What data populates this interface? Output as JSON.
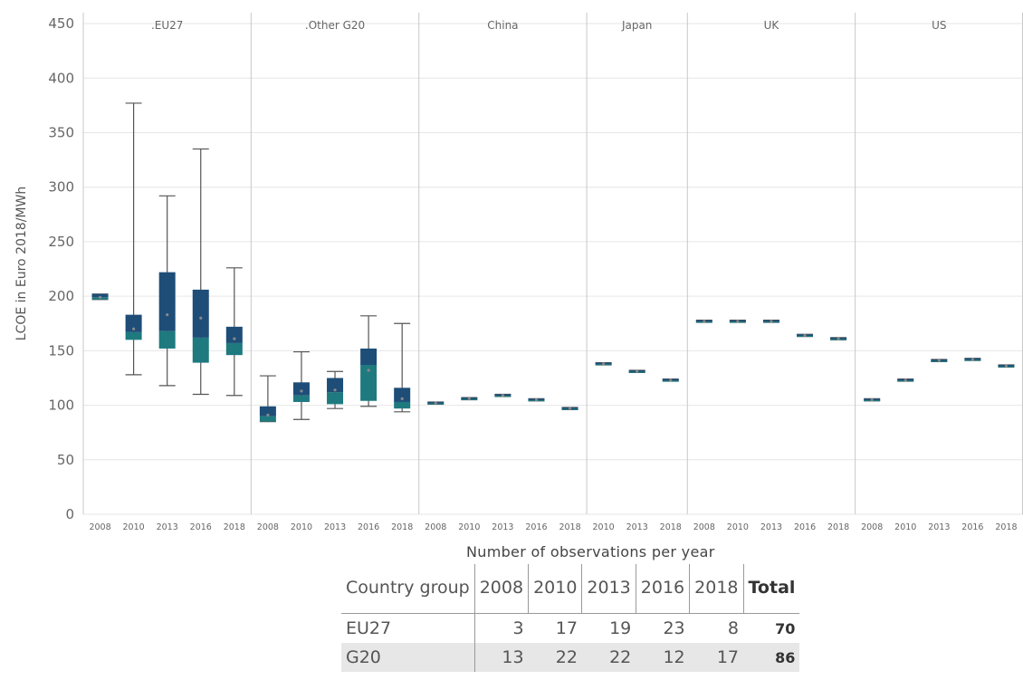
{
  "chart_data": {
    "type": "box",
    "ylabel": "LCOE in Euro 2018/MWh",
    "ylim": [
      0,
      460
    ],
    "yticks": [
      0,
      50,
      100,
      150,
      200,
      250,
      300,
      350,
      400,
      450
    ],
    "grid": true,
    "colors": {
      "box_upper": "#1e4d78",
      "box_lower": "#1e7a7f",
      "whisker": "#555555",
      "gridline": "#e6e6e6",
      "panel_divider": "#c8c8c8"
    },
    "panels": [
      {
        "name": ".EU27",
        "boxes": [
          {
            "x": "2008",
            "min": 197,
            "q1": 197,
            "median": 199,
            "q3": 202,
            "max": 202,
            "mean": 199
          },
          {
            "x": "2010",
            "min": 128,
            "q1": 160,
            "median": 167,
            "q3": 183,
            "max": 377,
            "mean": 170
          },
          {
            "x": "2013",
            "min": 118,
            "q1": 152,
            "median": 168,
            "q3": 222,
            "max": 292,
            "mean": 183
          },
          {
            "x": "2016",
            "min": 110,
            "q1": 139,
            "median": 162,
            "q3": 206,
            "max": 335,
            "mean": 180
          },
          {
            "x": "2018",
            "min": 109,
            "q1": 146,
            "median": 157,
            "q3": 172,
            "max": 226,
            "mean": 161
          }
        ]
      },
      {
        "name": ".Other G20",
        "boxes": [
          {
            "x": "2008",
            "min": 85,
            "q1": 85,
            "median": 90,
            "q3": 99,
            "max": 127,
            "mean": 91
          },
          {
            "x": "2010",
            "min": 87,
            "q1": 103,
            "median": 109,
            "q3": 121,
            "max": 149,
            "mean": 113
          },
          {
            "x": "2013",
            "min": 97,
            "q1": 101,
            "median": 112,
            "q3": 125,
            "max": 131,
            "mean": 114
          },
          {
            "x": "2016",
            "min": 99,
            "q1": 104,
            "median": 137,
            "q3": 152,
            "max": 182,
            "mean": 132
          },
          {
            "x": "2018",
            "min": 94,
            "q1": 97,
            "median": 103,
            "q3": 116,
            "max": 175,
            "mean": 106
          }
        ]
      },
      {
        "name": "China",
        "boxes": [
          {
            "x": "2008",
            "min": 101,
            "q1": 101,
            "median": 102,
            "q3": 103,
            "max": 103,
            "mean": 102
          },
          {
            "x": "2010",
            "min": 105,
            "q1": 105,
            "median": 106,
            "q3": 107,
            "max": 107,
            "mean": 106
          },
          {
            "x": "2013",
            "min": 108,
            "q1": 108,
            "median": 109,
            "q3": 110,
            "max": 110,
            "mean": 109
          },
          {
            "x": "2016",
            "min": 104,
            "q1": 104,
            "median": 105,
            "q3": 106,
            "max": 106,
            "mean": 105
          },
          {
            "x": "2018",
            "min": 96,
            "q1": 96,
            "median": 97,
            "q3": 98,
            "max": 98,
            "mean": 97
          }
        ]
      },
      {
        "name": "Japan",
        "boxes": [
          {
            "x": "2010",
            "min": 137,
            "q1": 137,
            "median": 138,
            "q3": 139,
            "max": 139,
            "mean": 138
          },
          {
            "x": "2013",
            "min": 130,
            "q1": 130,
            "median": 131,
            "q3": 132,
            "max": 132,
            "mean": 131
          },
          {
            "x": "2018",
            "min": 122,
            "q1": 122,
            "median": 123,
            "q3": 124,
            "max": 124,
            "mean": 123
          }
        ]
      },
      {
        "name": "UK",
        "boxes": [
          {
            "x": "2008",
            "min": 176,
            "q1": 176,
            "median": 177,
            "q3": 178,
            "max": 178,
            "mean": 177
          },
          {
            "x": "2010",
            "min": 176,
            "q1": 176,
            "median": 177,
            "q3": 178,
            "max": 178,
            "mean": 177
          },
          {
            "x": "2013",
            "min": 176,
            "q1": 176,
            "median": 177,
            "q3": 178,
            "max": 178,
            "mean": 177
          },
          {
            "x": "2016",
            "min": 163,
            "q1": 163,
            "median": 164,
            "q3": 165,
            "max": 165,
            "mean": 164
          },
          {
            "x": "2018",
            "min": 160,
            "q1": 160,
            "median": 161,
            "q3": 162,
            "max": 162,
            "mean": 161
          }
        ]
      },
      {
        "name": "US",
        "boxes": [
          {
            "x": "2008",
            "min": 104,
            "q1": 104,
            "median": 105,
            "q3": 106,
            "max": 106,
            "mean": 105
          },
          {
            "x": "2010",
            "min": 122,
            "q1": 122,
            "median": 123,
            "q3": 124,
            "max": 124,
            "mean": 123
          },
          {
            "x": "2013",
            "min": 140,
            "q1": 140,
            "median": 141,
            "q3": 142,
            "max": 142,
            "mean": 141
          },
          {
            "x": "2016",
            "min": 141,
            "q1": 141,
            "median": 142,
            "q3": 143,
            "max": 143,
            "mean": 142
          },
          {
            "x": "2018",
            "min": 135,
            "q1": 135,
            "median": 136,
            "q3": 137,
            "max": 137,
            "mean": 136
          }
        ]
      }
    ]
  },
  "observations_table": {
    "title": "Number of observations per year",
    "headers": [
      "Country group",
      "2008",
      "2010",
      "2013",
      "2016",
      "2018",
      "Total"
    ],
    "rows": [
      {
        "group": "EU27",
        "values": [
          "3",
          "17",
          "19",
          "23",
          "8"
        ],
        "total": "70"
      },
      {
        "group": "G20",
        "values": [
          "13",
          "22",
          "22",
          "12",
          "17"
        ],
        "total": "86"
      }
    ]
  }
}
